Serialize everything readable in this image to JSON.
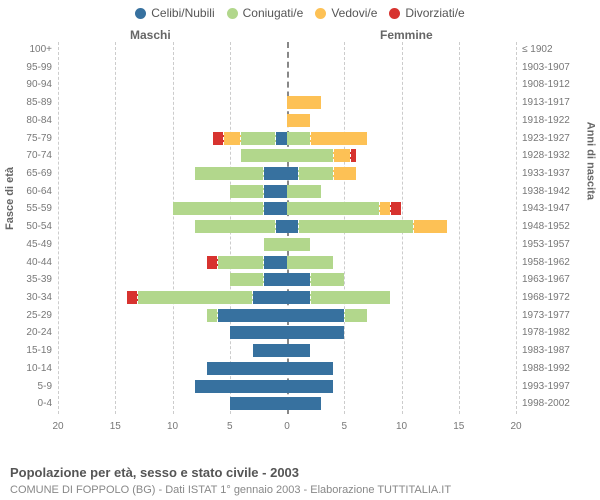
{
  "legend": {
    "items": [
      {
        "label": "Celibi/Nubili",
        "color": "#37719f"
      },
      {
        "label": "Coniugati/e",
        "color": "#b2d78c"
      },
      {
        "label": "Vedovi/e",
        "color": "#fdc155"
      },
      {
        "label": "Divorziati/e",
        "color": "#d7332f"
      }
    ]
  },
  "headers": {
    "male": "Maschi",
    "female": "Femmine"
  },
  "axis_titles": {
    "left": "Fasce di età",
    "right": "Anni di nascita"
  },
  "x_axis": {
    "max": 20,
    "ticks": [
      20,
      15,
      10,
      5,
      0,
      5,
      10,
      15,
      20
    ]
  },
  "colors": {
    "celibi": "#37719f",
    "coniugati": "#b2d78c",
    "vedovi": "#fdc155",
    "divorziati": "#d7332f",
    "grid": "#cccccc",
    "center": "#888888",
    "text": "#777777"
  },
  "rows": [
    {
      "age": "100+",
      "birth": "≤ 1902",
      "m": [
        0,
        0,
        0,
        0
      ],
      "f": [
        0,
        0,
        0,
        0
      ]
    },
    {
      "age": "95-99",
      "birth": "1903-1907",
      "m": [
        0,
        0,
        0,
        0
      ],
      "f": [
        0,
        0,
        0,
        0
      ]
    },
    {
      "age": "90-94",
      "birth": "1908-1912",
      "m": [
        0,
        0,
        0,
        0
      ],
      "f": [
        0,
        0,
        0,
        0
      ]
    },
    {
      "age": "85-89",
      "birth": "1913-1917",
      "m": [
        0,
        0,
        0,
        0
      ],
      "f": [
        0,
        0,
        3,
        0
      ]
    },
    {
      "age": "80-84",
      "birth": "1918-1922",
      "m": [
        0,
        0,
        0,
        0
      ],
      "f": [
        0,
        0,
        2,
        0
      ]
    },
    {
      "age": "75-79",
      "birth": "1923-1927",
      "m": [
        1,
        3,
        1.5,
        1
      ],
      "f": [
        0,
        2,
        5,
        0
      ]
    },
    {
      "age": "70-74",
      "birth": "1928-1932",
      "m": [
        0,
        4,
        0,
        0
      ],
      "f": [
        0,
        4,
        1.5,
        0.5
      ]
    },
    {
      "age": "65-69",
      "birth": "1933-1937",
      "m": [
        2,
        6,
        0,
        0
      ],
      "f": [
        1,
        3,
        2,
        0
      ]
    },
    {
      "age": "60-64",
      "birth": "1938-1942",
      "m": [
        2,
        3,
        0,
        0
      ],
      "f": [
        0,
        3,
        0,
        0
      ]
    },
    {
      "age": "55-59",
      "birth": "1943-1947",
      "m": [
        2,
        8,
        0,
        0
      ],
      "f": [
        0,
        8,
        1,
        1
      ]
    },
    {
      "age": "50-54",
      "birth": "1948-1952",
      "m": [
        1,
        7,
        0,
        0
      ],
      "f": [
        1,
        10,
        3,
        0
      ]
    },
    {
      "age": "45-49",
      "birth": "1953-1957",
      "m": [
        0,
        2,
        0,
        0
      ],
      "f": [
        0,
        2,
        0,
        0
      ]
    },
    {
      "age": "40-44",
      "birth": "1958-1962",
      "m": [
        2,
        4,
        0,
        1
      ],
      "f": [
        0,
        4,
        0,
        0
      ]
    },
    {
      "age": "35-39",
      "birth": "1963-1967",
      "m": [
        2,
        3,
        0,
        0
      ],
      "f": [
        2,
        3,
        0,
        0
      ]
    },
    {
      "age": "30-34",
      "birth": "1968-1972",
      "m": [
        3,
        10,
        0,
        1
      ],
      "f": [
        2,
        7,
        0,
        0
      ]
    },
    {
      "age": "25-29",
      "birth": "1973-1977",
      "m": [
        6,
        1,
        0,
        0
      ],
      "f": [
        5,
        2,
        0,
        0
      ]
    },
    {
      "age": "20-24",
      "birth": "1978-1982",
      "m": [
        5,
        0,
        0,
        0
      ],
      "f": [
        5,
        0,
        0,
        0
      ]
    },
    {
      "age": "15-19",
      "birth": "1983-1987",
      "m": [
        3,
        0,
        0,
        0
      ],
      "f": [
        2,
        0,
        0,
        0
      ]
    },
    {
      "age": "10-14",
      "birth": "1988-1992",
      "m": [
        7,
        0,
        0,
        0
      ],
      "f": [
        4,
        0,
        0,
        0
      ]
    },
    {
      "age": "5-9",
      "birth": "1993-1997",
      "m": [
        8,
        0,
        0,
        0
      ],
      "f": [
        4,
        0,
        0,
        0
      ]
    },
    {
      "age": "0-4",
      "birth": "1998-2002",
      "m": [
        5,
        0,
        0,
        0
      ],
      "f": [
        3,
        0,
        0,
        0
      ]
    }
  ],
  "footer": {
    "title": "Popolazione per età, sesso e stato civile - 2003",
    "subtitle": "COMUNE DI FOPPOLO (BG) - Dati ISTAT 1° gennaio 2003 - Elaborazione TUTTITALIA.IT"
  }
}
